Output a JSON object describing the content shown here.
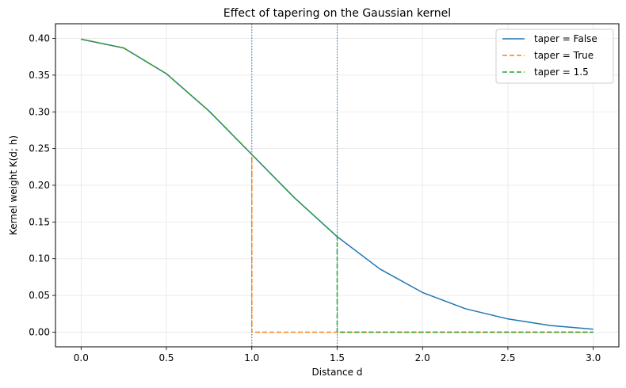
{
  "chart_data": {
    "type": "line",
    "title": "Effect of tapering on the Gaussian kernel",
    "xlabel": "Distance d",
    "ylabel": "Kernel weight K(d; h)",
    "xlim": [
      -0.15,
      3.15
    ],
    "ylim": [
      -0.02,
      0.42
    ],
    "xticks": [
      0.0,
      0.5,
      1.0,
      1.5,
      2.0,
      2.5,
      3.0
    ],
    "xtick_labels": [
      "0.0",
      "0.5",
      "1.0",
      "1.5",
      "2.0",
      "2.5",
      "3.0"
    ],
    "yticks": [
      0.0,
      0.05,
      0.1,
      0.15,
      0.2,
      0.25,
      0.3,
      0.35,
      0.4
    ],
    "ytick_labels": [
      "0.00",
      "0.05",
      "0.10",
      "0.15",
      "0.20",
      "0.25",
      "0.30",
      "0.35",
      "0.40"
    ],
    "grid": true,
    "legend_position": "top-right",
    "series": [
      {
        "name": "taper = False",
        "color": "#1f77b4",
        "style": "solid",
        "x": [
          0.0,
          0.25,
          0.5,
          0.75,
          1.0,
          1.25,
          1.5,
          1.75,
          2.0,
          2.25,
          2.5,
          2.75,
          3.0
        ],
        "y": [
          0.399,
          0.387,
          0.352,
          0.301,
          0.242,
          0.183,
          0.13,
          0.086,
          0.054,
          0.032,
          0.018,
          0.009,
          0.004
        ]
      },
      {
        "name": "taper = True",
        "color": "#ff7f0e",
        "style": "dashed",
        "x": [
          0.0,
          0.25,
          0.5,
          0.75,
          1.0,
          1.0,
          1.5,
          2.0,
          2.5,
          3.0
        ],
        "y": [
          0.399,
          0.387,
          0.352,
          0.301,
          0.242,
          0.0,
          0.0,
          0.0,
          0.0,
          0.0
        ]
      },
      {
        "name": "taper = 1.5",
        "color": "#2ca02c",
        "style": "dashed",
        "x": [
          0.0,
          0.25,
          0.5,
          0.75,
          1.0,
          1.25,
          1.5,
          1.5,
          2.0,
          2.5,
          3.0
        ],
        "y": [
          0.399,
          0.387,
          0.352,
          0.301,
          0.242,
          0.183,
          0.13,
          0.0,
          0.0,
          0.0,
          0.0
        ]
      }
    ],
    "vlines": [
      {
        "x": 1.0,
        "color": "#1f77b4",
        "style": "dotted"
      },
      {
        "x": 1.5,
        "color": "#1f77b4",
        "style": "dotted"
      }
    ]
  }
}
